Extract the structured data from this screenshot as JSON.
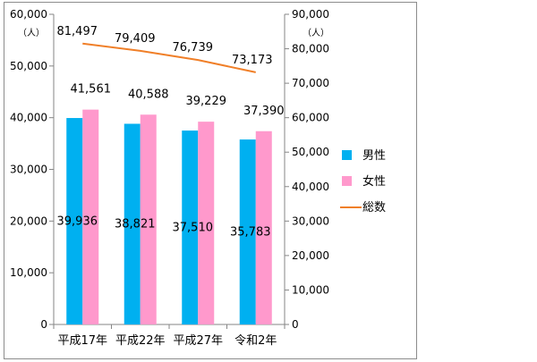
{
  "chart_data": {
    "type": "bar",
    "categories": [
      "平成17年",
      "平成22年",
      "平成27年",
      "令和2年"
    ],
    "series": [
      {
        "name": "男性",
        "type": "bar",
        "axis": "left",
        "color": "#00b0f0",
        "values": [
          39936,
          38821,
          37510,
          35783
        ],
        "labels": [
          "39,936",
          "38,821",
          "37,510",
          "35,783"
        ]
      },
      {
        "name": "女性",
        "type": "bar",
        "axis": "left",
        "color": "#ff99cc",
        "values": [
          41561,
          40588,
          39229,
          37390
        ],
        "labels": [
          "41,561",
          "40,588",
          "39,229",
          "37,390"
        ]
      },
      {
        "name": "総数",
        "type": "line",
        "axis": "right",
        "color": "#f07f28",
        "values": [
          81497,
          79409,
          76739,
          73173
        ],
        "labels": [
          "81,497",
          "79,409",
          "76,739",
          "73,173"
        ]
      }
    ],
    "y_left": {
      "unit": "（人）",
      "ylim": [
        0,
        60000
      ],
      "ticks": [
        "0",
        "10,000",
        "20,000",
        "30,000",
        "40,000",
        "50,000",
        "60,000"
      ]
    },
    "y_right": {
      "unit": "（人）",
      "ylim": [
        0,
        90000
      ],
      "ticks": [
        "0",
        "10,000",
        "20,000",
        "30,000",
        "40,000",
        "50,000",
        "60,000",
        "70,000",
        "80,000",
        "90,000"
      ]
    },
    "grid": false,
    "legend_position": "right"
  }
}
